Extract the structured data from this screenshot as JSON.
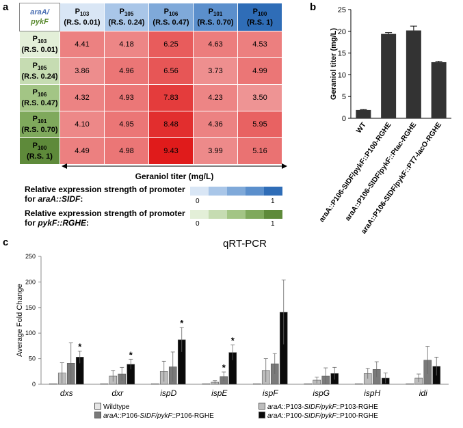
{
  "panel_a": {
    "letter": "a",
    "corner_top": "araA/",
    "corner_bottom": "pykF",
    "colors": {
      "corner_top": "#4a6fb3",
      "corner_bottom": "#5a8a2e",
      "col_headers": [
        "#d9e6f5",
        "#a9c6e8",
        "#7fa9d9",
        "#5b8fcc",
        "#2f6db7"
      ],
      "row_headers": [
        "#e3efd8",
        "#c6dcb2",
        "#a3c585",
        "#7fa95c",
        "#5e8a3a"
      ],
      "cell_min": "#f6d5d5",
      "cell_max": "#e01b1b"
    },
    "col_headers": [
      {
        "sub": "103",
        "rs": "(R.S. 0.01)"
      },
      {
        "sub": "105",
        "rs": "(R.S. 0.24)"
      },
      {
        "sub": "106",
        "rs": "(R.S. 0.47)"
      },
      {
        "sub": "101",
        "rs": "(R.S. 0.70)"
      },
      {
        "sub": "100",
        "rs": "(R.S. 1)"
      }
    ],
    "row_headers": [
      {
        "sub": "103",
        "rs": "(R.S. 0.01)"
      },
      {
        "sub": "105",
        "rs": "(R.S. 0.24)"
      },
      {
        "sub": "106",
        "rs": "(R.S. 0.47)"
      },
      {
        "sub": "101",
        "rs": "(R.S. 0.70)"
      },
      {
        "sub": "100",
        "rs": "(R.S. 1)"
      }
    ],
    "p_letter": "P",
    "xlabel": "Geraniol titer (mg/L)",
    "legend1_line1": "Relative expression strength of promoter",
    "legend1_line2_prefix": "for ",
    "legend1_line2_italic": "araA::SIDF",
    "legend1_line2_suffix": ":",
    "legend2_line1": "Relative expression strength of promoter",
    "legend2_line2_prefix": "for ",
    "legend2_line2_italic": "pykF::RGHE",
    "legend2_line2_suffix": ":",
    "cb_min": "0",
    "cb_max": "1"
  },
  "panel_b_letter": "b",
  "panel_c_letter": "c",
  "chart_data": [
    {
      "type": "heatmap",
      "title": "",
      "xlabel": "Geraniol titer (mg/L)",
      "x_categories": [
        "P103 (R.S. 0.01)",
        "P105 (R.S. 0.24)",
        "P106 (R.S. 0.47)",
        "P101 (R.S. 0.70)",
        "P100 (R.S. 1)"
      ],
      "y_categories": [
        "P103 (R.S. 0.01)",
        "P105 (R.S. 0.24)",
        "P106 (R.S. 0.47)",
        "P101 (R.S. 0.70)",
        "P100 (R.S. 1)"
      ],
      "values": [
        [
          "4.41",
          "4.18",
          "6.25",
          "4.63",
          "4.53"
        ],
        [
          "3.86",
          "4.96",
          "6.56",
          "3.73",
          "4.99"
        ],
        [
          "4.32",
          "4.93",
          "7.83",
          "4.23",
          "3.50"
        ],
        [
          "4.10",
          "4.95",
          "8.48",
          "4.36",
          "5.95"
        ],
        [
          "4.49",
          "4.98",
          "9.43",
          "3.99",
          "5.16"
        ]
      ]
    },
    {
      "type": "bar",
      "title": "",
      "ylabel": "Geraniol titer (mg/L)",
      "ylim": [
        0,
        25
      ],
      "yticks": [
        "0",
        "5",
        "10",
        "15",
        "20",
        "25"
      ],
      "categories": [
        "WT",
        "araA::P106-SIDF/pykF::P100-RGHE",
        "araA::P106-SIDF/pykF::Ptac-RGHE",
        "araA::P106-SIDF/pykF::PT7-lacO-RGHE"
      ],
      "values": [
        1.9,
        19.4,
        20.2,
        12.9
      ],
      "errors": [
        0.1,
        0.3,
        1.0,
        0.2
      ],
      "bar_color": "#333333"
    },
    {
      "type": "bar",
      "title": "qRT-PCR",
      "ylabel": "Average Fold Change",
      "ylim": [
        0,
        250
      ],
      "yticks": [
        "0",
        "50",
        "100",
        "150",
        "200",
        "250"
      ],
      "categories": [
        "dxs",
        "dxr",
        "ispD",
        "ispE",
        "ispF",
        "ispG",
        "ispH",
        "idi"
      ],
      "series": [
        {
          "name": "Wildtype",
          "color": "#e6e6e6",
          "values": [
            1,
            1,
            1,
            1,
            1,
            1,
            1,
            1
          ],
          "errors": [
            0,
            0,
            0,
            0,
            0,
            0,
            0,
            0
          ]
        },
        {
          "name": "araA::P103-SIDF/pykF::P103-RGHE",
          "color": "#bdbdbd",
          "values": [
            22,
            16,
            25,
            4,
            27,
            8,
            21,
            12
          ],
          "errors": [
            20,
            11,
            20,
            3,
            23,
            6,
            10,
            8
          ]
        },
        {
          "name": "araA::P106-SIDF/pykF::P106-RGHE",
          "color": "#7a7a7a",
          "values": [
            41,
            20,
            34,
            15,
            40,
            16,
            29,
            47
          ],
          "errors": [
            40,
            13,
            29,
            9,
            20,
            16,
            15,
            27
          ]
        },
        {
          "name": "araA::P100-SIDF/pykF::P100-RGHE",
          "color": "#0a0a0a",
          "values": [
            53,
            39,
            87,
            62,
            141,
            21,
            12,
            35
          ],
          "errors": [
            12,
            10,
            24,
            15,
            63,
            12,
            10,
            18
          ]
        }
      ],
      "significance": [
        [
          0,
          3
        ],
        [
          1,
          3
        ],
        [
          2,
          3
        ],
        [
          3,
          2
        ],
        [
          3,
          3
        ]
      ],
      "significance_mark": "*"
    }
  ],
  "panel_c_legend": [
    {
      "prefix": "Wildtype",
      "italic1": "",
      "mid": "",
      "italic2": "",
      "suffix": ""
    },
    {
      "prefix": "",
      "italic1": "araA",
      "mid": "::P106-",
      "italic2": "SIDF/pykF",
      "suffix": "::P106-RGHE"
    },
    {
      "prefix": "",
      "italic1": "araA",
      "mid": "::P103-",
      "italic2": "SIDF/pykF",
      "suffix": "::P103-RGHE"
    },
    {
      "prefix": "",
      "italic1": "araA",
      "mid": "::P100-",
      "italic2": "SIDF/pykF",
      "suffix": "::P100-RGHE"
    }
  ]
}
